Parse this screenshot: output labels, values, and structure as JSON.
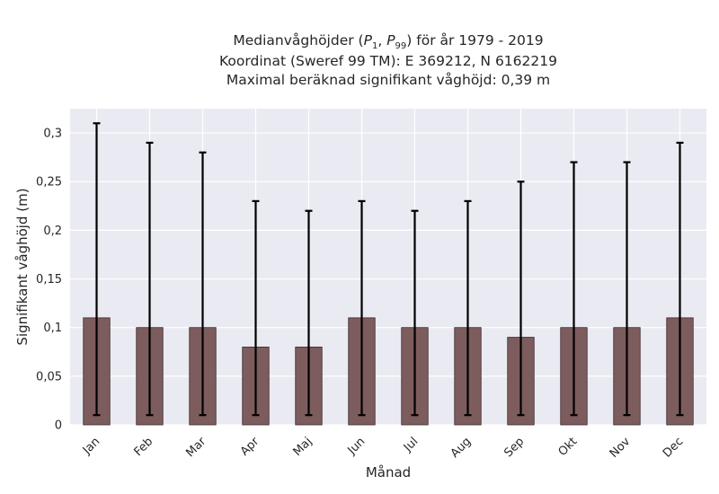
{
  "chart_data": {
    "type": "bar",
    "title_lines": {
      "line1_prefix": "Medianvåghöjder (",
      "p_low_symbol": "P",
      "p_low_sub": "1",
      "separator": ", ",
      "p_high_symbol": "P",
      "p_high_sub": "99",
      "line1_suffix": ") för år 1979 - 2019",
      "line2": "Koordinat (Sweref 99 TM): E 369212, N 6162219",
      "line3": "Maximal beräknad signifikant våghöjd: 0,39 m"
    },
    "xlabel": "Månad",
    "ylabel": "Signifikant våghöjd (m)",
    "categories": [
      "Jan",
      "Feb",
      "Mar",
      "Apr",
      "Maj",
      "Jun",
      "Jul",
      "Aug",
      "Sep",
      "Okt",
      "Nov",
      "Dec"
    ],
    "values": [
      0.11,
      0.1,
      0.1,
      0.08,
      0.08,
      0.11,
      0.1,
      0.1,
      0.09,
      0.1,
      0.1,
      0.11
    ],
    "error_low": [
      0.01,
      0.01,
      0.01,
      0.01,
      0.01,
      0.01,
      0.01,
      0.01,
      0.01,
      0.01,
      0.01,
      0.01
    ],
    "error_high": [
      0.31,
      0.29,
      0.28,
      0.23,
      0.22,
      0.23,
      0.22,
      0.23,
      0.25,
      0.27,
      0.27,
      0.29
    ],
    "ylim": [
      0,
      0.325
    ],
    "yticks": [
      0,
      0.05,
      0.1,
      0.15,
      0.2,
      0.25,
      0.3
    ],
    "ytick_labels": [
      "0",
      "0,05",
      "0,1",
      "0,15",
      "0,2",
      "0,25",
      "0,3"
    ],
    "grid": true,
    "colors": {
      "bar": "#7d5c5d",
      "background": "#eaeaf2",
      "grid": "#ffffff",
      "errorbar": "#000000"
    }
  }
}
